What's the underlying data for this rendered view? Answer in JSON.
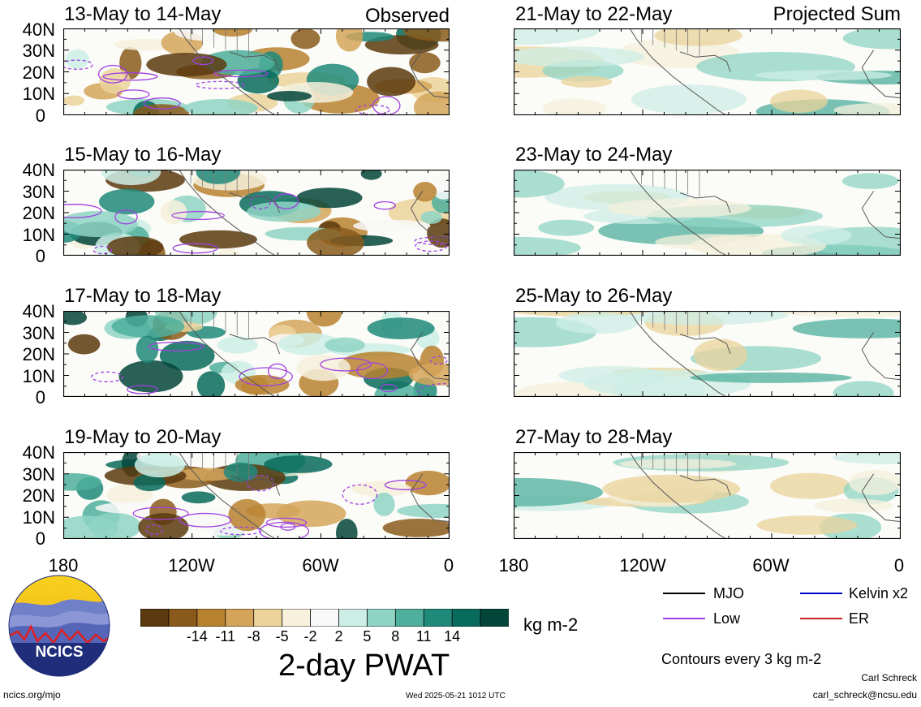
{
  "panels": [
    {
      "title": "13-May to 14-May",
      "tag": "Observed",
      "kind": "observed"
    },
    {
      "title": "21-May to 22-May",
      "tag": "Projected Sum",
      "kind": "projected"
    },
    {
      "title": "15-May to 16-May",
      "tag": "",
      "kind": "observed"
    },
    {
      "title": "23-May to 24-May",
      "tag": "",
      "kind": "projected"
    },
    {
      "title": "17-May to 18-May",
      "tag": "",
      "kind": "observed"
    },
    {
      "title": "25-May to 26-May",
      "tag": "",
      "kind": "projected"
    },
    {
      "title": "19-May to 20-May",
      "tag": "",
      "kind": "observed"
    },
    {
      "title": "27-May to 28-May",
      "tag": "",
      "kind": "projected"
    }
  ],
  "y_axis_labels": [
    "40N",
    "30N",
    "20N",
    "10N",
    "0"
  ],
  "x_axis_labels": [
    "180",
    "120W",
    "60W",
    "0"
  ],
  "colorbar": {
    "ticks": [
      "-14",
      "-11",
      "-8",
      "-5",
      "-2",
      "2",
      "5",
      "8",
      "11",
      "14"
    ],
    "colors": [
      "#5a3a0e",
      "#8a5a1c",
      "#b7812f",
      "#d4a45a",
      "#ebd39b",
      "#f6f0dc",
      "#f8f8f8",
      "#cdeee6",
      "#8fd4c4",
      "#4eaf9c",
      "#1f8a7a",
      "#086b5c",
      "#04453a"
    ],
    "units": "kg m-2",
    "title": "2-day PWAT"
  },
  "legend": {
    "mjo": "MJO",
    "kelvin": "Kelvin x2",
    "low": "Low",
    "er": "ER",
    "contour_note": "Contours every 3 kg m-2",
    "colors": {
      "mjo": "#000000",
      "kelvin": "#0000cc",
      "low": "#a040e0",
      "er": "#cc2222"
    }
  },
  "logo": {
    "text": "NCICS"
  },
  "footer": {
    "url": "ncics.org/mjo",
    "timestamp": "Wed 2025-05-21 1012 UTC",
    "author": "Carl Schreck",
    "email": "carl_schreck@ncsu.edu"
  }
}
